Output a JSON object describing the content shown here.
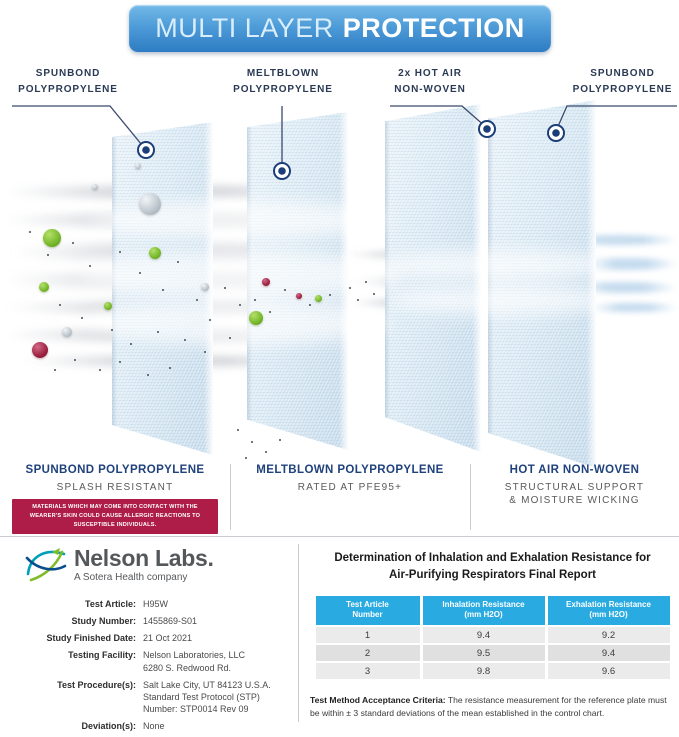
{
  "banner": {
    "text_light": "MULTI LAYER",
    "text_bold": "PROTECTION"
  },
  "layer_labels": [
    {
      "line1": "SPUNBOND",
      "line2": "POLYPROPYLENE"
    },
    {
      "line1": "MELTBLOWN",
      "line2": "POLYPROPYLENE"
    },
    {
      "line1": "2x HOT AIR",
      "line2": "NON-WOVEN"
    },
    {
      "line1": "SPUNBOND",
      "line2": "POLYPROPYLENE"
    }
  ],
  "captions": [
    {
      "title": "SPUNBOND POLYPROPYLENE",
      "subtitle": "SPLASH RESISTANT",
      "warning": "MATERIALS WHICH MAY COME INTO CONTACT WITH THE WEARER'S SKIN COULD CAUSE ALLERGIC REACTIONS TO SUSCEPTIBLE INDIVIDUALS."
    },
    {
      "title": "MELTBLOWN POLYPROPYLENE",
      "subtitle": "RATED AT PFE95+"
    },
    {
      "title": "HOT AIR NON-WOVEN",
      "subtitle": "STRUCTURAL SUPPORT",
      "subtitle2": "& MOISTURE WICKING"
    }
  ],
  "report": {
    "logo": {
      "name": "Nelson Labs.",
      "tagline": "A Sotera Health company"
    },
    "details": [
      {
        "label": "Test Article:",
        "lines": [
          "H95W"
        ]
      },
      {
        "label": "Study Number:",
        "lines": [
          "1455869-S01"
        ]
      },
      {
        "label": "Study Finished Date:",
        "lines": [
          "21 Oct 2021"
        ]
      },
      {
        "label": "Testing Facility:",
        "lines": [
          "Nelson Laboratories, LLC",
          "6280 S. Redwood Rd."
        ]
      },
      {
        "label": "Test Procedure(s):",
        "lines": [
          "Salt Lake City, UT 84123 U.S.A.",
          "Standard Test Protocol (STP)",
          "Number: STP0014 Rev 09"
        ]
      },
      {
        "label": "Deviation(s):",
        "lines": [
          "None"
        ]
      }
    ],
    "title_line1": "Determination of Inhalation and Exhalation Resistance for",
    "title_line2": "Air-Purifying Respirators Final Report",
    "table": {
      "headers": [
        {
          "line1": "Test Article",
          "line2": "Number"
        },
        {
          "line1": "Inhalation Resistance",
          "line2": "(mm H2O)"
        },
        {
          "line1": "Exhalation Resistance",
          "line2": "(mm H2O)"
        }
      ],
      "rows": [
        [
          "1",
          "9.4",
          "9.2"
        ],
        [
          "2",
          "9.5",
          "9.4"
        ],
        [
          "3",
          "9.8",
          "9.6"
        ]
      ]
    },
    "acceptance_label": "Test Method Acceptance Criteria:",
    "acceptance_text": "The resistance measurement for the reference plate must be within ± 3 standard deviations of the mean established in the control chart."
  },
  "colors": {
    "banner_blue": "#3C8FD2",
    "table_header_blue": "#29ABE2",
    "warning_red": "#AE1D48",
    "marker_navy": "#1C3E78",
    "caption_navy": "#20427C"
  }
}
